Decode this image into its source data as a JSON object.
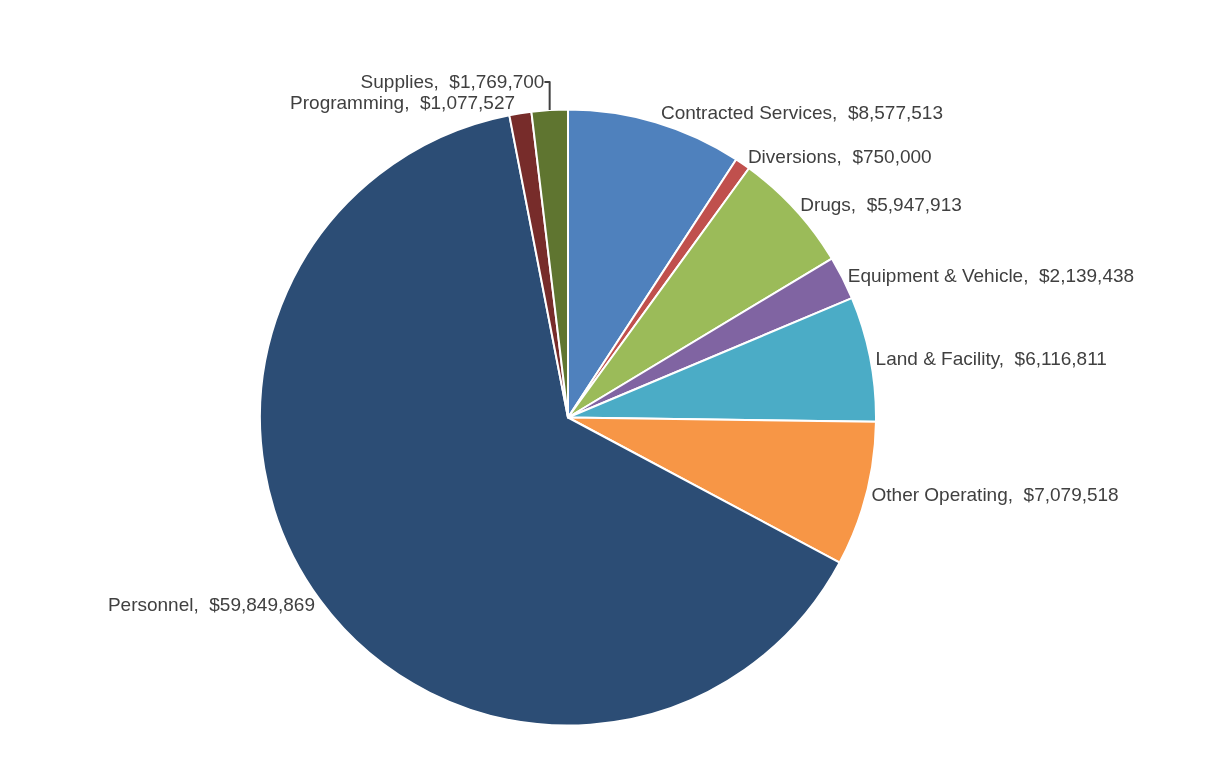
{
  "chart_data": {
    "type": "pie",
    "categories": [
      "Contracted Services",
      "Diversions",
      "Drugs",
      "Equipment & Vehicle",
      "Land & Facility",
      "Other Operating",
      "Personnel",
      "Programming",
      "Supplies"
    ],
    "values": [
      8577513,
      750000,
      5947913,
      2139438,
      6116811,
      7079518,
      59849869,
      1077527,
      1769700
    ],
    "value_labels": [
      "$8,577,513",
      "$750,000",
      "$5,947,913",
      "$2,139,438",
      "$6,116,811",
      "$7,079,518",
      "$59,849,869",
      "$1,077,527",
      "$1,769,700"
    ],
    "colors": [
      "#4f81bd",
      "#c0504d",
      "#9bbb59",
      "#8064a2",
      "#4bacc6",
      "#f79646",
      "#2c4d75",
      "#772c2a",
      "#5f7530"
    ],
    "legend": false
  }
}
